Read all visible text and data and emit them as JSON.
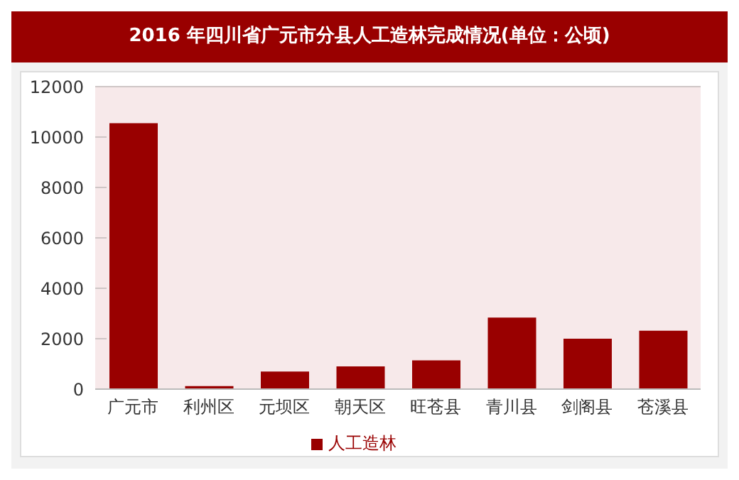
{
  "chart_data": {
    "type": "bar",
    "title": "2016 年四川省广元市分县人工造林完成情况(单位：公顷)",
    "categories": [
      "广元市",
      "利州区",
      "元坝区",
      "朝天区",
      "旺苍县",
      "青川县",
      "剑阁县",
      "苍溪县"
    ],
    "series": [
      {
        "name": "人工造林",
        "color": "#990000",
        "values": [
          10550,
          120,
          700,
          900,
          1140,
          2840,
          2000,
          2320
        ]
      }
    ],
    "ylim": [
      0,
      12000
    ],
    "yticks": [
      0,
      2000,
      4000,
      6000,
      8000,
      10000,
      12000
    ],
    "grid": "y",
    "legend": "bottom"
  }
}
